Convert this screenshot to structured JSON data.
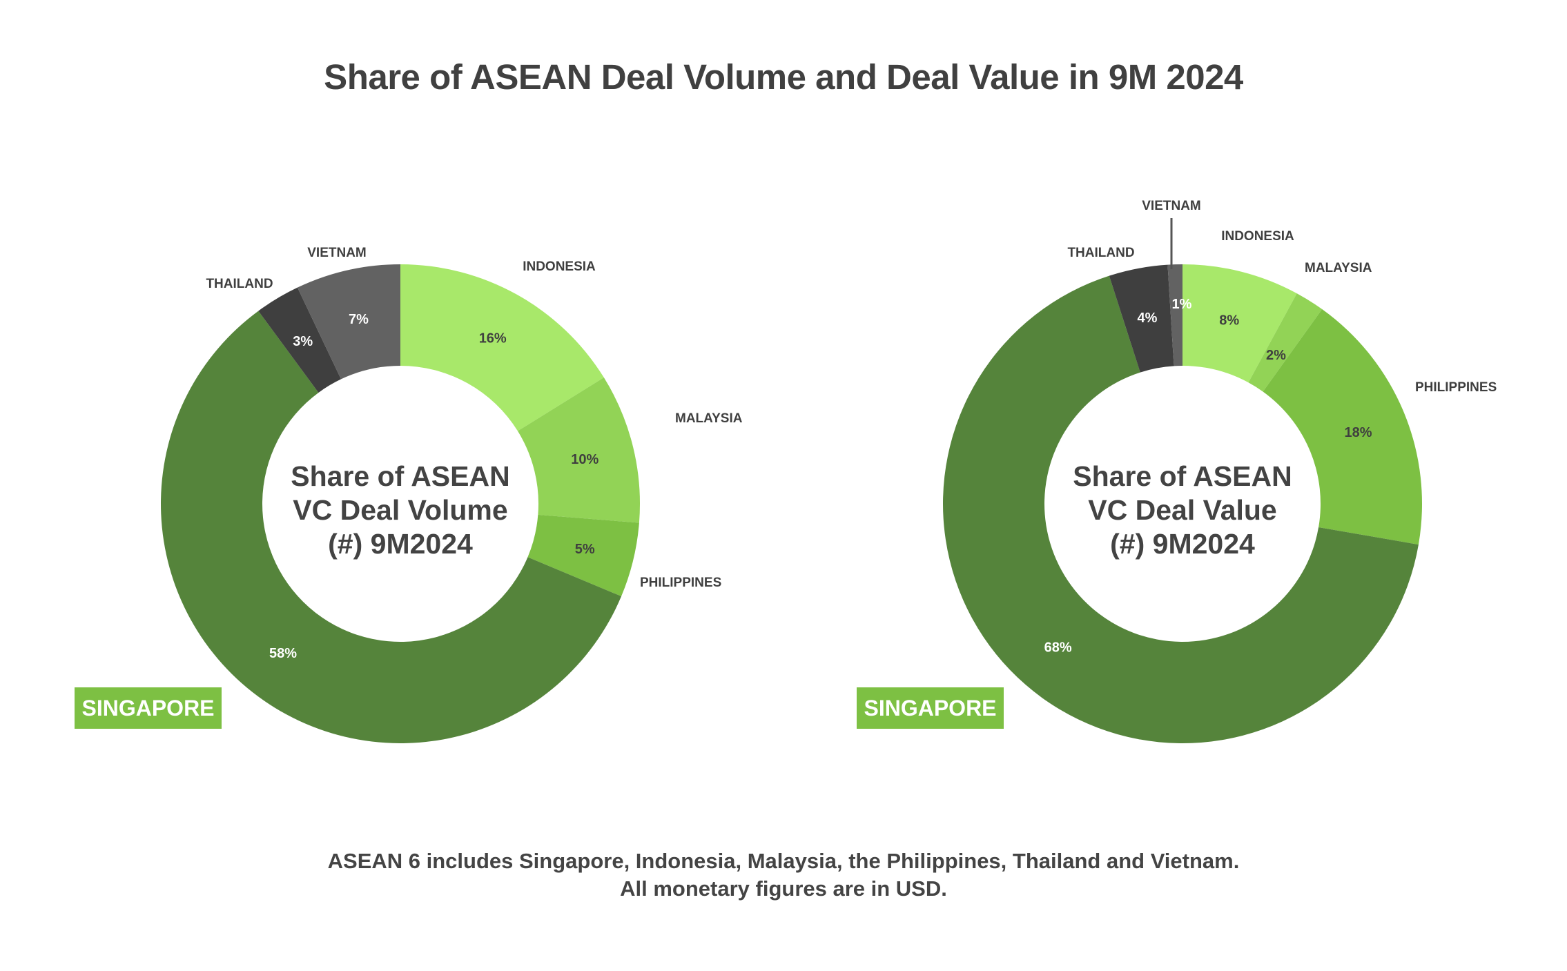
{
  "title": "Share of ASEAN Deal Volume and Deal Value in 9M 2024",
  "colors": {
    "singapore": "#55843b",
    "indonesia": "#a8e86a",
    "malaysia": "#92d356",
    "philippines": "#7dc043",
    "thailand": "#3f3f3f",
    "vietnam": "#626262",
    "badge": "#7dc043"
  },
  "chart_data": [
    {
      "type": "pie",
      "variant": "donut",
      "center_label": [
        "Share of ASEAN",
        "VC Deal Volume",
        "(#) 9M2024"
      ],
      "highlight_label": "SINGAPORE",
      "categories": [
        "INDONESIA",
        "MALAYSIA",
        "PHILIPPINES",
        "SINGAPORE",
        "THAILAND",
        "VIETNAM"
      ],
      "values": [
        16,
        10,
        5,
        58,
        3,
        7
      ],
      "value_labels": [
        "16%",
        "10%",
        "5%",
        "58%",
        "3%",
        "7%"
      ]
    },
    {
      "type": "pie",
      "variant": "donut",
      "center_label": [
        "Share of ASEAN",
        "VC Deal Value",
        "(#) 9M2024"
      ],
      "highlight_label": "SINGAPORE",
      "categories": [
        "INDONESIA",
        "MALAYSIA",
        "PHILIPPINES",
        "SINGAPORE",
        "THAILAND",
        "VIETNAM"
      ],
      "values": [
        8,
        2,
        18,
        68,
        4,
        1
      ],
      "value_labels": [
        "8%",
        "2%",
        "18%",
        "68%",
        "4%",
        "1%"
      ]
    }
  ],
  "footnote": [
    "ASEAN 6 includes Singapore, Indonesia, Malaysia, the Philippines, Thailand and Vietnam.",
    "All monetary figures are in USD."
  ]
}
